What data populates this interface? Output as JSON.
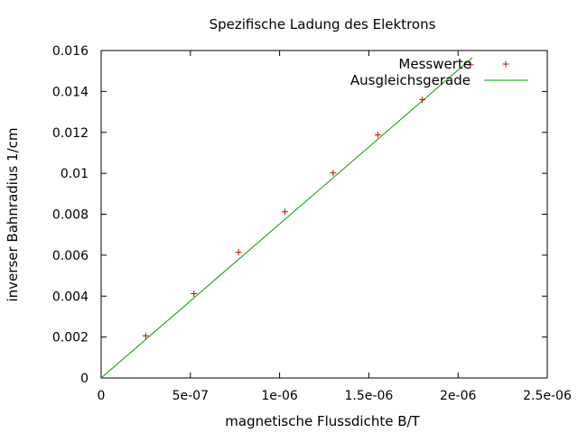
{
  "chart_data": {
    "type": "scatter",
    "title": "Spezifische Ladung des Elektrons",
    "xlabel": "magnetische Flussdichte B/T",
    "ylabel": "inverser Bahnradius 1/cm",
    "xlim": [
      0,
      2.5e-06
    ],
    "ylim": [
      0,
      0.016
    ],
    "x_ticks": [
      "0",
      "5e-07",
      "1e-06",
      "1.5e-06",
      "2e-06",
      "2.5e-06"
    ],
    "y_ticks": [
      "0",
      "0.002",
      "0.004",
      "0.006",
      "0.008",
      "0.01",
      "0.012",
      "0.014",
      "0.016"
    ],
    "x_tick_values": [
      0,
      5e-07,
      1e-06,
      1.5e-06,
      2e-06,
      2.5e-06
    ],
    "y_tick_values": [
      0,
      0.002,
      0.004,
      0.006,
      0.008,
      0.01,
      0.012,
      0.014,
      0.016
    ],
    "legend_position": "top-right",
    "series": [
      {
        "name": "Messwerte",
        "kind": "points",
        "color": "#cc0000",
        "points": [
          [
            2.5e-07,
            0.00206
          ],
          [
            5.2e-07,
            0.00412
          ],
          [
            7.7e-07,
            0.00614
          ],
          [
            1.03e-06,
            0.00812
          ],
          [
            1.3e-06,
            0.01002
          ],
          [
            1.55e-06,
            0.01188
          ],
          [
            1.8e-06,
            0.0136
          ],
          [
            2.07e-06,
            0.0153
          ]
        ]
      },
      {
        "name": "Ausgleichsgerade",
        "kind": "line",
        "color": "#00a000",
        "points": [
          [
            0,
            0
          ],
          [
            2.08e-06,
            0.01565
          ]
        ]
      }
    ]
  }
}
